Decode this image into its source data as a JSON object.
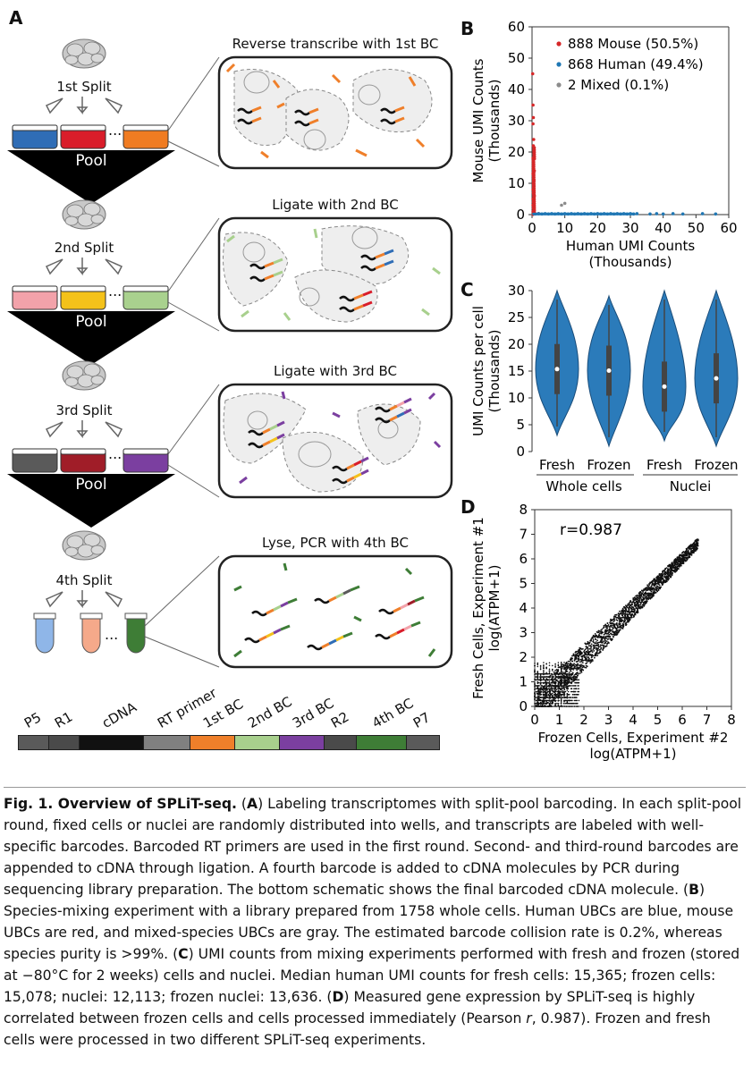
{
  "panels": {
    "a": "A",
    "b": "B",
    "c": "C",
    "d": "D"
  },
  "panel_a": {
    "splits": [
      "1st Split",
      "2nd Split",
      "3rd Split",
      "4th Split"
    ],
    "pool": "Pool",
    "dots": "...",
    "steps": [
      "Reverse transcribe with 1st BC",
      "Ligate with 2nd BC",
      "Ligate with 3rd BC",
      "Lyse, PCR with 4th BC"
    ],
    "barcode_segments": [
      {
        "label": "P5",
        "color": "#5a5a5a"
      },
      {
        "label": "R1",
        "color": "#4a4a4a"
      },
      {
        "label": "cDNA",
        "color": "#111111"
      },
      {
        "label": "RT primer",
        "color": "#808080"
      },
      {
        "label": "1st BC",
        "color": "#ef7f2a"
      },
      {
        "label": "2nd BC",
        "color": "#a8d08d"
      },
      {
        "label": "3rd BC",
        "color": "#7b3fa0"
      },
      {
        "label": "R2",
        "color": "#4a4a4a"
      },
      {
        "label": "4th BC",
        "color": "#3e7d36"
      },
      {
        "label": "P7",
        "color": "#5a5a5a"
      }
    ]
  },
  "chart_data": [
    {
      "type": "scatter",
      "panel": "B",
      "xlabel": "Human UMI Counts (Thousands)",
      "ylabel": "Mouse UMI Counts (Thousands)",
      "xlim": [
        0,
        60
      ],
      "ylim": [
        0,
        60
      ],
      "xticks": [
        0,
        10,
        20,
        30,
        40,
        50,
        60
      ],
      "yticks": [
        0,
        10,
        20,
        30,
        40,
        50,
        60
      ],
      "legend": [
        "888 Mouse (50.5%)",
        "868 Human (49.4%)",
        "2 Mixed (0.1%)"
      ],
      "legend_position": "top-right",
      "series": [
        {
          "name": "888 Mouse (50.5%)",
          "color": "#d62728",
          "points": [
            [
              0.2,
              45
            ],
            [
              0.3,
              35
            ],
            [
              0.4,
              31
            ],
            [
              0.3,
              29
            ],
            [
              0.5,
              24
            ],
            [
              0.4,
              22
            ],
            [
              0.6,
              20
            ],
            [
              0.3,
              18
            ],
            [
              0.5,
              16
            ],
            [
              0.4,
              15
            ],
            [
              0.7,
              14
            ],
            [
              0.3,
              13
            ],
            [
              0.5,
              12
            ],
            [
              0.6,
              11
            ],
            [
              0.4,
              10
            ],
            [
              0.5,
              9
            ],
            [
              0.3,
              8
            ],
            [
              0.6,
              7.5
            ],
            [
              0.4,
              7
            ],
            [
              0.5,
              6.5
            ],
            [
              0.7,
              6
            ],
            [
              0.3,
              5
            ],
            [
              0.5,
              4.5
            ],
            [
              0.4,
              4
            ],
            [
              0.6,
              3.5
            ],
            [
              0.3,
              3
            ],
            [
              0.5,
              2.5
            ],
            [
              0.4,
              2
            ],
            [
              0.6,
              1.5
            ],
            [
              0.3,
              1
            ],
            [
              0.5,
              0.5
            ],
            [
              2,
              0.3
            ]
          ]
        },
        {
          "name": "868 Human (49.4%)",
          "color": "#1f77b4",
          "points": [
            [
              1,
              0.2
            ],
            [
              2,
              0.3
            ],
            [
              3,
              0.2
            ],
            [
              4,
              0.3
            ],
            [
              5,
              0.2
            ],
            [
              6,
              0.3
            ],
            [
              7,
              0.2
            ],
            [
              8,
              0.3
            ],
            [
              9,
              0.2
            ],
            [
              10,
              0.3
            ],
            [
              11,
              0.2
            ],
            [
              12,
              0.3
            ],
            [
              13,
              0.2
            ],
            [
              14,
              0.3
            ],
            [
              15,
              0.2
            ],
            [
              16,
              0.3
            ],
            [
              17,
              0.2
            ],
            [
              18,
              0.3
            ],
            [
              19,
              0.2
            ],
            [
              20,
              0.3
            ],
            [
              21,
              0.2
            ],
            [
              22,
              0.3
            ],
            [
              23,
              0.2
            ],
            [
              24,
              0.3
            ],
            [
              25,
              0.2
            ],
            [
              26,
              0.3
            ],
            [
              27,
              0.2
            ],
            [
              28,
              0.3
            ],
            [
              29,
              0.2
            ],
            [
              30,
              0.3
            ],
            [
              31,
              0.2
            ],
            [
              32,
              0.3
            ],
            [
              36,
              0.2
            ],
            [
              38,
              0.3
            ],
            [
              40,
              0.2
            ],
            [
              43,
              0.3
            ],
            [
              46,
              0.2
            ],
            [
              52,
              0.3
            ],
            [
              56,
              0.2
            ]
          ]
        },
        {
          "name": "2 Mixed (0.1%)",
          "color": "#8c8c8c",
          "points": [
            [
              9,
              3
            ],
            [
              10,
              3.6
            ]
          ]
        }
      ]
    },
    {
      "type": "violin",
      "panel": "C",
      "ylabel": "UMI Counts per cell (Thousands)",
      "ylim": [
        0,
        30
      ],
      "yticks": [
        0,
        5,
        10,
        15,
        20,
        25,
        30
      ],
      "categories": [
        "Fresh",
        "Frozen",
        "Fresh",
        "Frozen"
      ],
      "groups": [
        "Whole cells",
        "Nuclei"
      ],
      "medians": [
        15.365,
        15.078,
        12.113,
        13.636
      ],
      "color": "#2b7bba"
    },
    {
      "type": "scatter",
      "panel": "D",
      "xlabel": "Frozen Cells, Experiment #2 log(ATPM+1)",
      "ylabel": "Fresh Cells, Experiment #1 log(ATPM+1)",
      "xlim": [
        0,
        8
      ],
      "ylim": [
        0,
        8
      ],
      "xticks": [
        0,
        1,
        2,
        3,
        4,
        5,
        6,
        7,
        8
      ],
      "yticks": [
        0,
        1,
        2,
        3,
        4,
        5,
        6,
        7,
        8
      ],
      "annotation": "r=0.987",
      "pearson_r": 0.987
    }
  ],
  "caption": {
    "title": "Fig. 1. Overview of SPLiT-seq.",
    "a_label": "A",
    "a_text": "Labeling transcriptomes with split-pool barcoding. In each split-pool round, fixed cells or nuclei are randomly distributed into wells, and transcripts are labeled with well-specific barcodes. Barcoded RT primers are used in the first round. Second- and third-round barcodes are appended to cDNA through ligation. A fourth barcode is added to cDNA molecules by PCR during sequencing library preparation. The bottom schematic shows the final barcoded cDNA molecule.",
    "b_label": "B",
    "b_text": "Species-mixing experiment with a library prepared from 1758 whole cells. Human UBCs are blue, mouse UBCs are red, and mixed-species UBCs are gray. The estimated barcode collision rate is 0.2%, whereas species purity is >99%.",
    "c_label": "C",
    "c_text": "UMI counts from mixing experiments performed with fresh and frozen (stored at −80°C for 2 weeks) cells and nuclei. Median human UMI counts for fresh cells: 15,365; frozen cells: 15,078; nuclei: 12,113; frozen nuclei: 13,636.",
    "d_label": "D",
    "d_text_1": "Measured gene expression by SPLiT-seq is highly correlated between frozen cells and cells processed immediately (Pearson",
    "d_r": "r",
    "d_text_2": ", 0.987). Frozen and fresh cells were processed in two different SPLiT-seq experiments."
  }
}
